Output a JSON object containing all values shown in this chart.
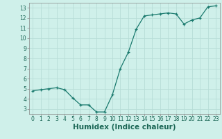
{
  "x": [
    0,
    1,
    2,
    3,
    4,
    5,
    6,
    7,
    8,
    9,
    10,
    11,
    12,
    13,
    14,
    15,
    16,
    17,
    18,
    19,
    20,
    21,
    22,
    23
  ],
  "y": [
    4.8,
    4.9,
    5.0,
    5.1,
    4.9,
    4.1,
    3.4,
    3.4,
    2.7,
    2.7,
    4.4,
    7.0,
    8.6,
    10.9,
    12.2,
    12.3,
    12.4,
    12.5,
    12.4,
    11.4,
    11.8,
    12.0,
    13.1,
    13.2
  ],
  "line_color": "#1a7a6e",
  "marker": "+",
  "bg_color": "#cff0ea",
  "grid_color": "#b8ddd7",
  "xlabel": "Humidex (Indice chaleur)",
  "xlim": [
    -0.5,
    23.5
  ],
  "ylim": [
    2.5,
    13.5
  ],
  "yticks": [
    3,
    4,
    5,
    6,
    7,
    8,
    9,
    10,
    11,
    12,
    13
  ],
  "xticks": [
    0,
    1,
    2,
    3,
    4,
    5,
    6,
    7,
    8,
    9,
    10,
    11,
    12,
    13,
    14,
    15,
    16,
    17,
    18,
    19,
    20,
    21,
    22,
    23
  ],
  "tick_label_fontsize": 5.5,
  "xlabel_fontsize": 7.5,
  "tick_color": "#1a6655",
  "axis_color": "#888888",
  "line_width": 0.9,
  "marker_size": 3.5,
  "marker_edge_width": 0.9
}
